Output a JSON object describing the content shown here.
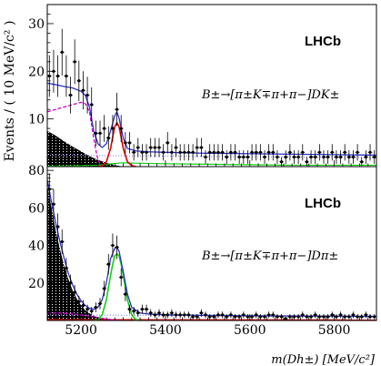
{
  "chart_data": {
    "type": "scatter",
    "y_title": "Events / ( 10 MeV/c² )",
    "x_title": "m(Dh±) [MeV/c²]",
    "xlim": [
      5120,
      5900
    ],
    "x_ticks": [
      5200,
      5400,
      5600,
      5800
    ],
    "colors": {
      "total": "#3030c8",
      "signal_K": "#e00000",
      "signal_pi": "#10d010",
      "partial_reco": "#d000d0",
      "combinatorial": "#9090ff",
      "shade": "#000000"
    },
    "panels": [
      {
        "logo": "LHCb",
        "decay_label": "B±→[π±K∓π+π−]DK±",
        "ylim": [
          0,
          34
        ],
        "y_ticks": [
          10,
          20,
          30
        ],
        "data": {
          "x": [
            5125,
            5135,
            5145,
            5155,
            5165,
            5175,
            5185,
            5195,
            5205,
            5215,
            5225,
            5235,
            5245,
            5255,
            5265,
            5275,
            5285,
            5295,
            5305,
            5315,
            5325,
            5335,
            5345,
            5355,
            5365,
            5375,
            5385,
            5395,
            5405,
            5415,
            5425,
            5435,
            5445,
            5455,
            5465,
            5475,
            5485,
            5495,
            5505,
            5515,
            5525,
            5535,
            5545,
            5555,
            5565,
            5575,
            5585,
            5595,
            5605,
            5615,
            5625,
            5635,
            5645,
            5655,
            5665,
            5675,
            5685,
            5695,
            5705,
            5715,
            5725,
            5735,
            5745,
            5755,
            5765,
            5775,
            5785,
            5795,
            5805,
            5815,
            5825,
            5835,
            5845,
            5855,
            5865,
            5875,
            5885,
            5895
          ],
          "y": [
            19,
            20,
            19,
            24,
            19,
            15,
            22,
            18,
            16,
            15,
            13,
            7,
            7,
            8,
            6,
            8,
            12,
            8,
            5,
            5,
            3,
            4,
            3,
            3,
            4,
            4,
            4,
            3,
            5,
            3,
            4,
            3,
            3,
            3,
            3,
            4,
            4,
            2,
            3,
            3,
            3,
            3,
            2,
            3,
            3,
            2,
            2,
            2,
            3,
            3,
            3,
            2,
            3,
            3,
            2,
            1,
            2,
            3,
            2,
            2,
            3,
            1,
            2,
            2,
            3,
            2,
            2,
            3,
            2,
            2,
            3,
            2,
            2,
            3,
            1,
            2,
            3,
            2
          ]
        },
        "curves": {
          "total": {
            "x": [
              5120,
              5140,
              5160,
              5180,
              5200,
              5210,
              5220,
              5230,
              5240,
              5250,
              5260,
              5270,
              5280,
              5285,
              5290,
              5300,
              5310,
              5330,
              5360,
              5400,
              5500,
              5600,
              5700,
              5800,
              5900
            ],
            "y": [
              17.5,
              17.2,
              16.8,
              16.5,
              15.8,
              15,
              12.5,
              7.5,
              4.8,
              4.0,
              4.8,
              7.5,
              10.7,
              11.5,
              10.2,
              6.0,
              3.8,
              3.3,
              3.1,
              3.0,
              2.8,
              2.7,
              2.6,
              2.5,
              2.4
            ]
          },
          "signal": {
            "x": [
              5240,
              5250,
              5260,
              5270,
              5275,
              5280,
              5285,
              5290,
              5295,
              5300,
              5310,
              5320,
              5330
            ],
            "y": [
              0.0,
              0.2,
              1.0,
              3.8,
              6.2,
              8.4,
              9.2,
              8.4,
              6.2,
              3.8,
              1.0,
              0.2,
              0.0
            ]
          },
          "partial_reco": {
            "x": [
              5120,
              5140,
              5160,
              5180,
              5200,
              5210,
              5220,
              5230,
              5235,
              5240,
              5245,
              5250
            ],
            "y": [
              11.5,
              12.0,
              12.5,
              13.0,
              13.5,
              13.2,
              11.5,
              6.0,
              3.5,
              1.5,
              0.5,
              0.0
            ]
          },
          "combinatorial": {
            "x": [
              5120,
              5900
            ],
            "y": [
              2.4,
              1.9
            ]
          },
          "misid": {
            "x": [
              5120,
              5200,
              5240,
              5260,
              5300,
              5340,
              5400,
              5500,
              5600,
              5700,
              5800,
              5900
            ],
            "y": [
              0.1,
              0.2,
              0.3,
              0.5,
              0.8,
              0.7,
              0.6,
              0.5,
              0.4,
              0.3,
              0.3,
              0.3
            ]
          },
          "shaded": {
            "x": [
              5120,
              5140,
              5160,
              5180,
              5200,
              5220,
              5240,
              5260,
              5280,
              5300
            ],
            "y": [
              7.5,
              6.5,
              5.3,
              4.2,
              3.2,
              2.2,
              1.4,
              0.8,
              0.3,
              0.0
            ]
          }
        }
      },
      {
        "logo": "LHCb",
        "decay_label": "B±→[π±K∓π+π−]Dπ±",
        "ylim": [
          0,
          82
        ],
        "y_ticks": [
          20,
          40,
          60,
          80
        ],
        "data": {
          "x": [
            5125,
            5135,
            5145,
            5155,
            5165,
            5175,
            5185,
            5195,
            5205,
            5215,
            5225,
            5235,
            5245,
            5255,
            5265,
            5275,
            5285,
            5295,
            5305,
            5315,
            5325,
            5335,
            5345,
            5355,
            5365,
            5375,
            5385,
            5395,
            5405,
            5415,
            5425,
            5435,
            5445,
            5455,
            5465,
            5475,
            5485,
            5495,
            5505,
            5515,
            5525,
            5535,
            5545,
            5555,
            5565,
            5575,
            5585,
            5595,
            5605,
            5615,
            5625,
            5635,
            5645,
            5655,
            5665,
            5675,
            5685,
            5695,
            5705,
            5715,
            5725,
            5735,
            5745,
            5755,
            5765,
            5775,
            5785,
            5795,
            5805,
            5815,
            5825,
            5835,
            5845,
            5855,
            5865,
            5875,
            5885,
            5895
          ],
          "y": [
            70,
            62,
            50,
            42,
            28,
            20,
            15,
            10,
            8,
            6,
            5,
            7,
            9,
            17,
            30,
            40,
            39,
            23,
            14,
            6,
            5,
            4,
            6,
            6,
            4,
            3,
            4,
            3,
            3,
            4,
            3,
            3,
            3,
            3,
            2,
            2,
            4,
            3,
            2,
            2,
            3,
            3,
            2,
            3,
            2,
            2,
            3,
            2,
            2,
            3,
            2,
            2,
            3,
            3,
            2,
            2,
            1,
            2,
            2,
            2,
            3,
            2,
            2,
            3,
            2,
            2,
            2,
            3,
            2,
            3,
            2,
            2,
            3,
            2,
            2,
            3,
            2,
            2
          ]
        },
        "curves": {
          "total": {
            "x": [
              5120,
              5130,
              5140,
              5150,
              5160,
              5170,
              5180,
              5190,
              5200,
              5210,
              5220,
              5230,
              5240,
              5250,
              5260,
              5270,
              5280,
              5285,
              5290,
              5300,
              5310,
              5320,
              5340,
              5360,
              5400,
              5500,
              5600,
              5700,
              5800,
              5900
            ],
            "y": [
              75,
              63,
              52,
              42,
              33,
              25,
              19,
              14,
              10.5,
              8,
              6.5,
              6,
              7,
              11,
              20,
              33,
              38.5,
              39,
              37,
              26,
              14,
              7,
              4,
              3.4,
              3.0,
              2.7,
              2.5,
              2.4,
              2.3,
              2.2
            ]
          },
          "signal": {
            "x": [
              5230,
              5240,
              5250,
              5260,
              5270,
              5275,
              5280,
              5285,
              5290,
              5295,
              5300,
              5310,
              5320,
              5330,
              5340
            ],
            "y": [
              0.0,
              0.5,
              3.0,
              11,
              24,
              30,
              34.5,
              35.5,
              34.5,
              30,
              24,
              11,
              3.0,
              0.5,
              0.0
            ]
          },
          "partial_reco": {
            "x": [
              5120,
              5140,
              5160,
              5180,
              5200,
              5220,
              5240,
              5260,
              5280,
              5300
            ],
            "y": [
              4.0,
              4.0,
              3.8,
              3.5,
              3.0,
              2.4,
              1.6,
              0.8,
              0.2,
              0.0
            ]
          },
          "combinatorial": {
            "x": [
              5120,
              5900
            ],
            "y": [
              3.0,
              2.0
            ]
          },
          "misid": {
            "x": [
              5120,
              5900
            ],
            "y": [
              0.5,
              0.3
            ]
          },
          "shaded": {
            "x": [
              5120,
              5130,
              5140,
              5150,
              5160,
              5170,
              5180,
              5190,
              5200,
              5210,
              5220,
              5230,
              5240,
              5250,
              5260,
              5280,
              5300
            ],
            "y": [
              72,
              60,
              48,
              38,
              29,
              22,
              16,
              11.5,
              8,
              5.5,
              3.8,
              2.5,
              1.6,
              1.0,
              0.6,
              0.2,
              0.0
            ]
          }
        }
      }
    ]
  }
}
